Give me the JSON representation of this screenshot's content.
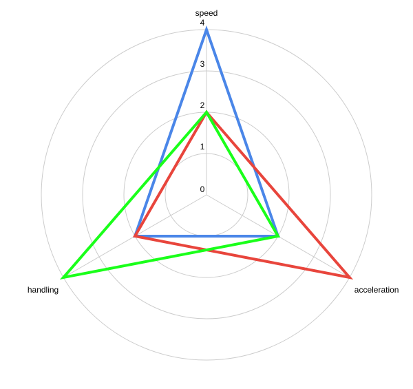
{
  "chart_data": {
    "type": "radar",
    "axes": [
      "speed",
      "acceleration",
      "handling"
    ],
    "r_ticks": [
      "0",
      "1",
      "2",
      "3",
      "4"
    ],
    "r_range": [
      0,
      4
    ],
    "grid": true,
    "legend": "none",
    "series": [
      {
        "color": "#4a86e8",
        "values": [
          4,
          2,
          2
        ]
      },
      {
        "color": "#e8453c",
        "values": [
          2,
          4,
          2
        ]
      },
      {
        "color": "#1aff1a",
        "values": [
          2,
          2,
          4
        ]
      }
    ]
  }
}
